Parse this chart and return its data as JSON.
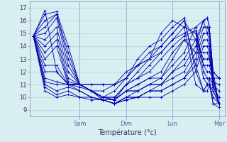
{
  "xlabel": "Température (°c)",
  "bg_color": "#d8eef0",
  "grid_color": "#aaccdd",
  "line_color": "#0000aa",
  "marker_color": "#0000cc",
  "ylim": [
    8.5,
    17.5
  ],
  "yticks": [
    9,
    10,
    11,
    12,
    13,
    14,
    15,
    16,
    17
  ],
  "day_labels": [
    "Sam",
    "Dim",
    "Lun",
    "Mar"
  ],
  "day_positions": [
    24,
    48,
    72,
    96
  ],
  "xlim": [
    -2,
    99
  ],
  "total_hours": 96,
  "forecast_lines": [
    [
      14.8,
      16.8,
      12.0,
      11.0,
      11.0,
      11.0,
      11.0,
      11.0,
      12.0,
      12.5,
      13.0,
      15.0,
      16.0,
      15.5,
      11.0,
      10.5,
      10.5,
      11.0,
      9.5,
      9.5
    ],
    [
      14.8,
      16.5,
      16.7,
      14.0,
      11.0,
      11.0,
      11.0,
      11.0,
      11.5,
      12.5,
      13.5,
      14.0,
      15.0,
      16.0,
      12.5,
      10.5,
      11.0,
      11.0,
      10.0,
      9.5
    ],
    [
      14.8,
      16.0,
      16.5,
      13.5,
      11.0,
      10.5,
      10.5,
      11.0,
      11.5,
      13.0,
      14.0,
      14.5,
      15.5,
      16.2,
      12.0,
      10.5,
      11.0,
      11.5,
      9.5,
      9.2
    ],
    [
      14.8,
      15.5,
      16.5,
      13.0,
      11.0,
      10.5,
      10.0,
      10.5,
      11.5,
      12.5,
      13.0,
      14.0,
      15.0,
      16.0,
      14.5,
      11.5,
      11.0,
      11.0,
      10.5,
      9.5
    ],
    [
      14.8,
      15.0,
      16.2,
      12.5,
      11.0,
      10.5,
      10.0,
      10.0,
      11.0,
      12.0,
      13.0,
      13.5,
      14.5,
      15.5,
      15.0,
      12.0,
      11.5,
      11.5,
      11.0,
      9.5
    ],
    [
      14.8,
      14.5,
      15.5,
      12.0,
      11.0,
      10.5,
      10.0,
      10.0,
      11.0,
      11.5,
      12.5,
      13.5,
      14.5,
      15.0,
      15.5,
      12.5,
      12.0,
      12.0,
      11.5,
      9.5
    ],
    [
      14.8,
      14.0,
      15.0,
      11.5,
      11.0,
      10.5,
      10.0,
      9.8,
      11.0,
      11.5,
      12.0,
      13.0,
      14.0,
      14.8,
      15.2,
      12.5,
      12.5,
      12.5,
      11.5,
      9.5
    ],
    [
      14.8,
      13.5,
      14.5,
      11.2,
      11.0,
      10.5,
      10.0,
      9.8,
      10.5,
      11.0,
      11.5,
      12.0,
      13.5,
      14.5,
      14.5,
      13.0,
      13.0,
      13.0,
      11.5,
      9.5
    ],
    [
      14.8,
      13.0,
      14.0,
      11.0,
      11.0,
      10.5,
      10.0,
      9.8,
      10.5,
      11.0,
      11.5,
      11.5,
      13.0,
      14.5,
      13.5,
      13.5,
      13.5,
      13.0,
      12.0,
      9.5
    ],
    [
      14.8,
      12.5,
      12.5,
      11.0,
      11.0,
      10.5,
      10.0,
      9.8,
      10.5,
      10.5,
      11.0,
      11.5,
      12.5,
      13.5,
      15.5,
      16.0,
      15.0,
      15.5,
      12.0,
      11.5
    ],
    [
      14.8,
      12.0,
      12.0,
      11.0,
      11.0,
      10.5,
      9.8,
      9.8,
      10.5,
      10.5,
      11.0,
      11.0,
      12.0,
      13.0,
      14.5,
      16.0,
      16.2,
      15.5,
      12.0,
      11.5
    ],
    [
      14.8,
      11.5,
      11.2,
      11.0,
      10.8,
      10.5,
      9.8,
      9.5,
      10.0,
      10.5,
      11.0,
      11.0,
      12.0,
      12.5,
      14.0,
      16.0,
      16.2,
      15.5,
      11.5,
      11.5
    ],
    [
      14.8,
      11.2,
      11.0,
      11.0,
      10.5,
      10.0,
      9.8,
      9.5,
      10.0,
      10.0,
      10.5,
      11.0,
      11.5,
      12.0,
      13.5,
      15.5,
      15.5,
      15.0,
      11.2,
      11.0
    ],
    [
      14.8,
      11.0,
      10.5,
      10.8,
      10.5,
      10.0,
      9.8,
      9.5,
      10.0,
      10.0,
      10.5,
      10.5,
      11.0,
      11.5,
      13.0,
      15.0,
      15.0,
      14.5,
      11.0,
      10.5
    ],
    [
      14.8,
      10.8,
      10.2,
      10.5,
      10.0,
      10.0,
      9.8,
      9.5,
      9.8,
      10.0,
      10.5,
      10.5,
      11.0,
      11.5,
      12.5,
      14.5,
      14.5,
      14.0,
      10.8,
      10.0
    ],
    [
      14.8,
      10.5,
      10.0,
      10.2,
      10.0,
      9.8,
      9.8,
      9.5,
      9.8,
      10.0,
      10.0,
      10.0,
      10.5,
      11.0,
      12.0,
      14.0,
      14.0,
      13.5,
      10.5,
      9.5
    ]
  ],
  "x_hours": [
    0,
    6,
    12,
    18,
    24,
    30,
    36,
    42,
    48,
    54,
    60,
    66,
    72,
    78,
    84,
    88,
    90,
    91,
    93,
    96
  ]
}
